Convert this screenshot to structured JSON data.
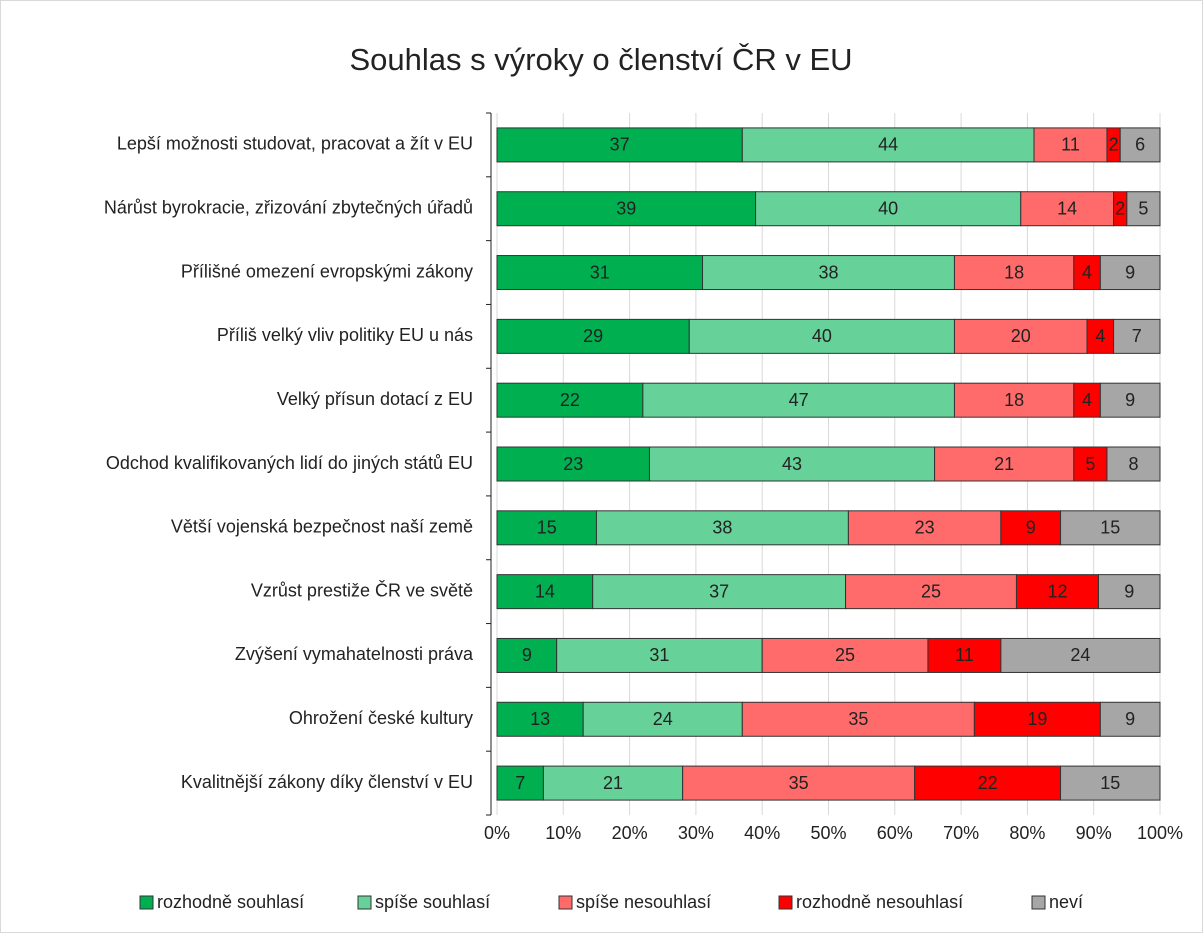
{
  "chart_data": {
    "type": "stacked-bar-horizontal",
    "stacking": "percent",
    "title": "Souhlas s výroky o členství ČR v EU",
    "categories": [
      "Lepší možnosti studovat, pracovat a žít v EU",
      "Nárůst byrokracie, zřizování zbytečných úřadů",
      "Přílišné omezení evropskými zákony",
      "Příliš velký vliv politiky EU u nás",
      "Velký přísun dotací z EU",
      "Odchod kvalifikovaných lidí do jiných států EU",
      "Větší vojenská bezpečnost naší země",
      "Vzrůst prestiže ČR ve světě",
      "Zvýšení vymahatelnosti práva",
      "Ohrožení české kultury",
      "Kvalitnější zákony díky členství v EU"
    ],
    "series": [
      {
        "name": "rozhodně souhlasí",
        "color": "#00b050",
        "values": [
          37,
          39,
          31,
          29,
          22,
          23,
          15,
          14,
          9,
          13,
          7
        ]
      },
      {
        "name": "spíše souhlasí",
        "color": "#66d199",
        "values": [
          44,
          40,
          38,
          40,
          47,
          43,
          38,
          37,
          31,
          24,
          21
        ]
      },
      {
        "name": "spíše nesouhlasí",
        "color": "#ff6b6b",
        "values": [
          11,
          14,
          18,
          20,
          18,
          21,
          23,
          25,
          25,
          35,
          35
        ]
      },
      {
        "name": "rozhodně nesouhlasí",
        "color": "#ff0000",
        "values": [
          2,
          2,
          4,
          4,
          4,
          5,
          9,
          12,
          11,
          19,
          22
        ]
      },
      {
        "name": "neví",
        "color": "#a6a6a6",
        "values": [
          6,
          5,
          9,
          7,
          9,
          8,
          15,
          9,
          24,
          9,
          15
        ]
      }
    ],
    "xlim": [
      0,
      100
    ],
    "xticks": [
      {
        "value": 0,
        "label": "0%"
      },
      {
        "value": 10,
        "label": "10%"
      },
      {
        "value": 20,
        "label": "20%"
      },
      {
        "value": 30,
        "label": "30%"
      },
      {
        "value": 40,
        "label": "40%"
      },
      {
        "value": 50,
        "label": "50%"
      },
      {
        "value": 60,
        "label": "60%"
      },
      {
        "value": 70,
        "label": "70%"
      },
      {
        "value": 80,
        "label": "80%"
      },
      {
        "value": 90,
        "label": "90%"
      },
      {
        "value": 100,
        "label": "100%"
      }
    ],
    "grid": true,
    "legend": "bottom"
  }
}
